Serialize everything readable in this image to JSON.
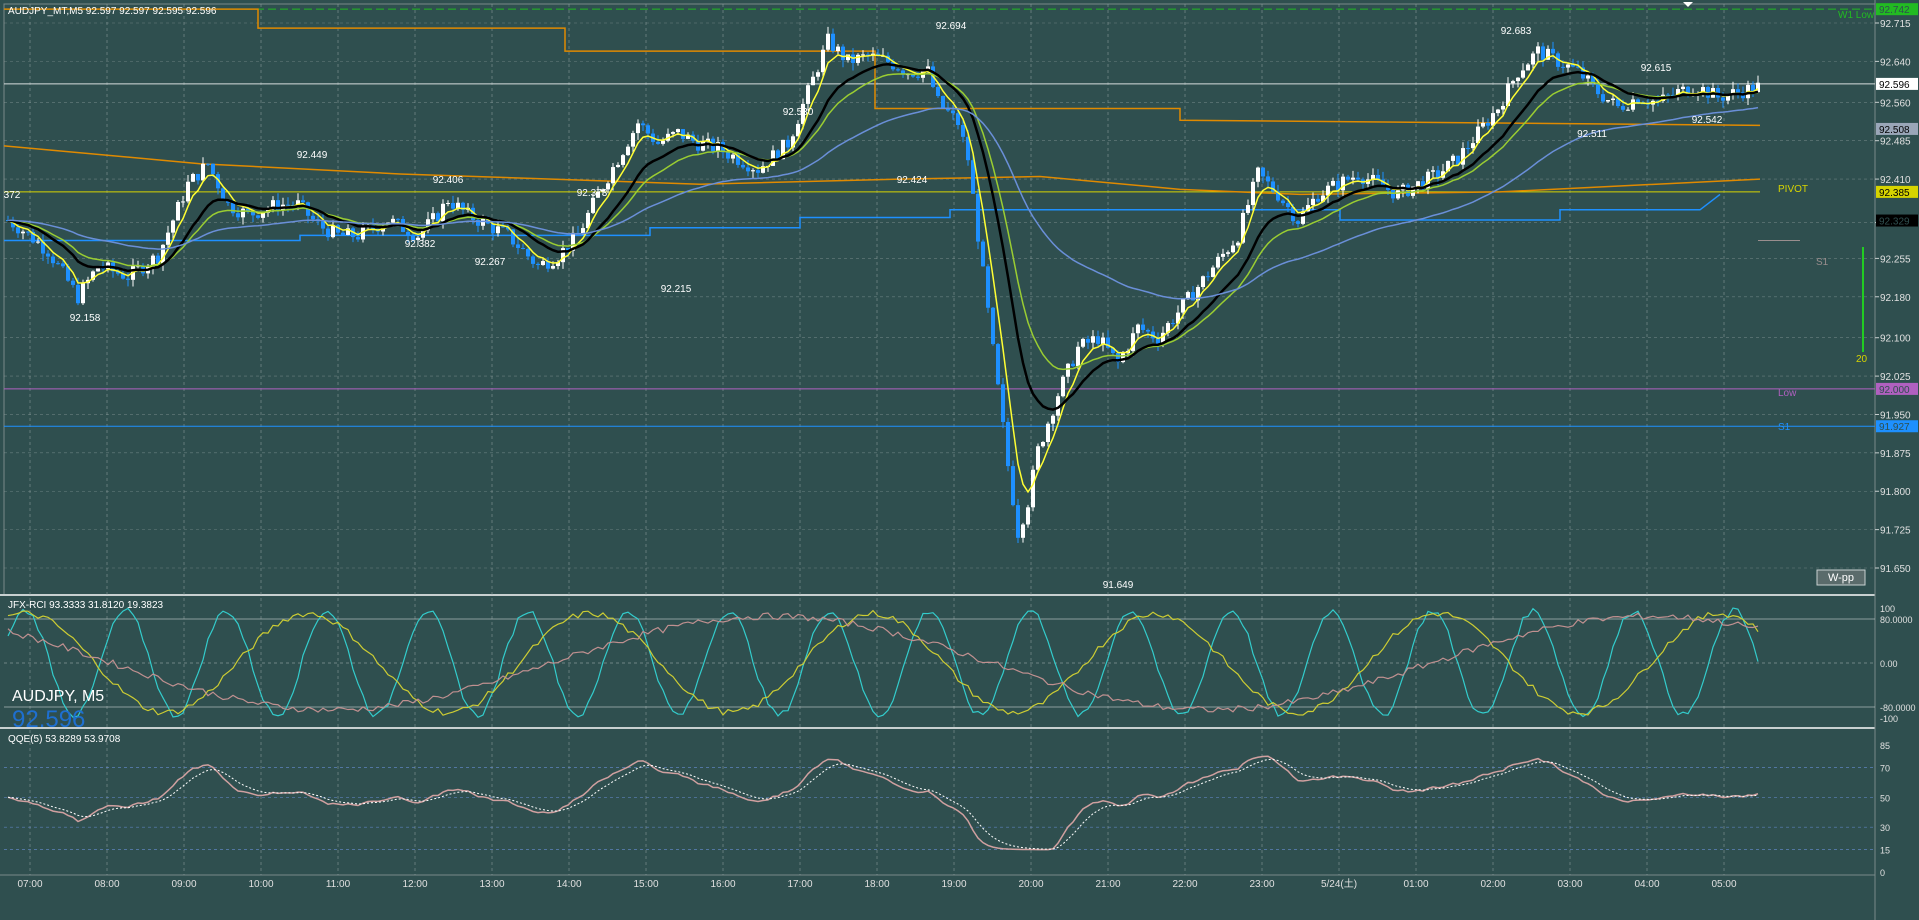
{
  "header": {
    "symbol_line": "AUDJPY_MT,M5  92.597 92.597 92.595 92.596"
  },
  "overlay": {
    "symbol_tf": "AUDJPY, M5",
    "last_price": "92.596"
  },
  "main_pane": {
    "price_ticks": [
      "92.715",
      "92.640",
      "92.560",
      "92.485",
      "92.410",
      "92.325",
      "92.255",
      "92.180",
      "92.100",
      "92.025",
      "91.950",
      "91.875",
      "91.800",
      "91.725",
      "91.650"
    ],
    "price_tags": [
      {
        "text": "92.742",
        "color": "#22bb22"
      },
      {
        "text": "92.596",
        "color": "#ffffff"
      },
      {
        "text": "92.508",
        "color": "#9aa6b8"
      },
      {
        "text": "92.385",
        "color": "#d7d400"
      },
      {
        "text": "92.329",
        "color": "#000000"
      },
      {
        "text": "92.000",
        "color": "#b060c0"
      },
      {
        "text": "91.927",
        "color": "#1e90ff"
      }
    ],
    "annotations": [
      "92.158",
      "92.449",
      "92.406",
      "92.382",
      "92.267",
      "92.373",
      "92.215",
      "92.530",
      "92.424",
      "92.694",
      "91.649",
      "92.683",
      "92.511",
      "92.615",
      "92.542",
      "372"
    ],
    "level_labels": {
      "w1_low": "W1 Low",
      "pivot": "PIVOT",
      "s1_gray": "S1",
      "low": "Low",
      "s1_blue": "S1",
      "bar_value": "20",
      "w_pp": "W-pp"
    }
  },
  "rci_pane": {
    "title": "JFX-RCI 93.3333 31.8120 19.3823",
    "ticks": [
      "100",
      "80.0000",
      "0.00",
      "-80.0000",
      "-100"
    ]
  },
  "qqe_pane": {
    "title": "QQE(5) 53.8289 53.9708",
    "ticks": [
      "85",
      "70",
      "50",
      "30",
      "15",
      "0"
    ]
  },
  "time_axis": {
    "labels": [
      "07:00",
      "08:00",
      "09:00",
      "10:00",
      "11:00",
      "12:00",
      "13:00",
      "14:00",
      "15:00",
      "16:00",
      "17:00",
      "18:00",
      "19:00",
      "20:00",
      "21:00",
      "22:00",
      "23:00",
      "5/24(土)",
      "01:00",
      "02:00",
      "03:00",
      "04:00",
      "05:00"
    ]
  },
  "colors": {
    "background": "#2f4f4f",
    "bull_candle": "#ffffff",
    "bear_candle": "#1e90ff",
    "ma_black": "#000000",
    "ma_yellow": "#ffff33",
    "ma_green": "#9acd32",
    "ma_blue": "#6a8fd8",
    "orange": "#e08a00",
    "pivot": "#d7d400",
    "low_line": "#b060c0",
    "s1_line": "#1e90ff",
    "rci_cyan": "#33cccc",
    "rci_yellow": "#cccc33",
    "rci_pink": "#c09090",
    "qqe_pink": "#d0a0a0",
    "qqe_dotted": "#ffffff"
  }
}
